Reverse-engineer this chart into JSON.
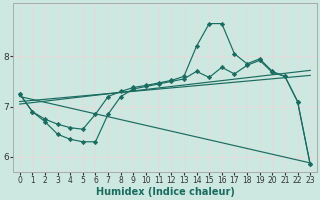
{
  "xlabel": "Humidex (Indice chaleur)",
  "background_color": "#cce8e0",
  "grid_color": "#f0f0f0",
  "line_color": "#1a6b60",
  "xlim": [
    -0.5,
    23.5
  ],
  "ylim": [
    5.7,
    9.05
  ],
  "yticks": [
    6,
    7,
    8
  ],
  "xticks": [
    0,
    1,
    2,
    3,
    4,
    5,
    6,
    7,
    8,
    9,
    10,
    11,
    12,
    13,
    14,
    15,
    16,
    17,
    18,
    19,
    20,
    21,
    22,
    23
  ],
  "curve_upper_x": [
    0,
    1,
    2,
    3,
    4,
    5,
    6,
    7,
    8,
    9,
    10,
    11,
    12,
    13,
    14,
    15,
    16,
    17,
    18,
    19,
    20,
    21,
    22,
    23
  ],
  "curve_upper_y": [
    7.25,
    6.9,
    6.75,
    6.65,
    6.58,
    6.55,
    6.85,
    7.2,
    7.3,
    7.38,
    7.42,
    7.47,
    7.52,
    7.6,
    8.2,
    8.65,
    8.65,
    8.05,
    7.85,
    7.95,
    7.7,
    7.6,
    7.1,
    5.85
  ],
  "curve_lower_x": [
    0,
    1,
    2,
    3,
    4,
    5,
    6,
    7,
    8,
    9,
    10,
    11,
    12,
    13,
    14,
    15,
    16,
    17,
    18,
    19,
    20,
    21,
    22,
    23
  ],
  "curve_lower_y": [
    7.25,
    6.9,
    6.7,
    6.45,
    6.35,
    6.3,
    6.3,
    6.85,
    7.2,
    7.35,
    7.4,
    7.45,
    7.5,
    7.55,
    7.7,
    7.58,
    7.78,
    7.65,
    7.82,
    7.92,
    7.68,
    7.6,
    7.1,
    5.85
  ],
  "trend1_x": [
    0,
    23
  ],
  "trend1_y": [
    7.05,
    7.72
  ],
  "trend2_x": [
    0,
    23
  ],
  "trend2_y": [
    7.1,
    7.62
  ],
  "trend3_x": [
    0,
    23
  ],
  "trend3_y": [
    7.2,
    5.88
  ],
  "font_size": 7,
  "lw": 0.85
}
